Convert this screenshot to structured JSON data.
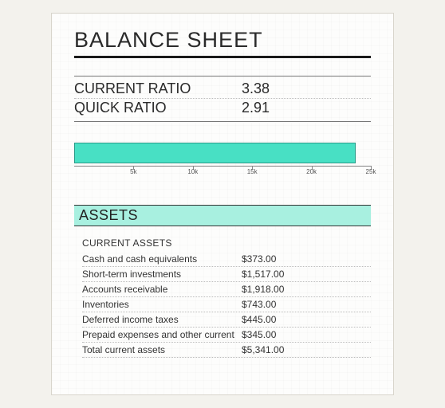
{
  "title": "BALANCE SHEET",
  "ratios": [
    {
      "label": "CURRENT RATIO",
      "value": "3.38"
    },
    {
      "label": "QUICK RATIO",
      "value": "2.91"
    }
  ],
  "chart": {
    "type": "bar",
    "orientation": "horizontal",
    "xlim": [
      0,
      25000
    ],
    "ticks": [
      5000,
      10000,
      15000,
      20000,
      25000
    ],
    "tick_labels": [
      "5k",
      "10k",
      "15k",
      "20k",
      "25k"
    ],
    "tick_fontsize": 8,
    "bar_value": 23700,
    "bar_color": "#48e0c4",
    "bar_border_color": "#2a9a88",
    "axis_color": "#888888",
    "background_color": "#fdfdfc"
  },
  "assets_section": {
    "header": "ASSETS",
    "header_bg": "#a8f0e0",
    "subhead": "CURRENT ASSETS",
    "rows": [
      {
        "label": "Cash and cash equivalents",
        "value": "$373.00"
      },
      {
        "label": "Short-term investments",
        "value": "$1,517.00"
      },
      {
        "label": "Accounts receivable",
        "value": "$1,918.00"
      },
      {
        "label": "Inventories",
        "value": "$743.00"
      },
      {
        "label": "Deferred income taxes",
        "value": "$445.00"
      },
      {
        "label": "Prepaid expenses and other current",
        "value": "$345.00"
      },
      {
        "label": "Total current assets",
        "value": "$5,341.00"
      }
    ]
  },
  "colors": {
    "page_bg": "#f3f2ed",
    "sheet_bg": "#fdfdfc",
    "text": "#2a2a2a",
    "rule": "#1a1a1a"
  }
}
